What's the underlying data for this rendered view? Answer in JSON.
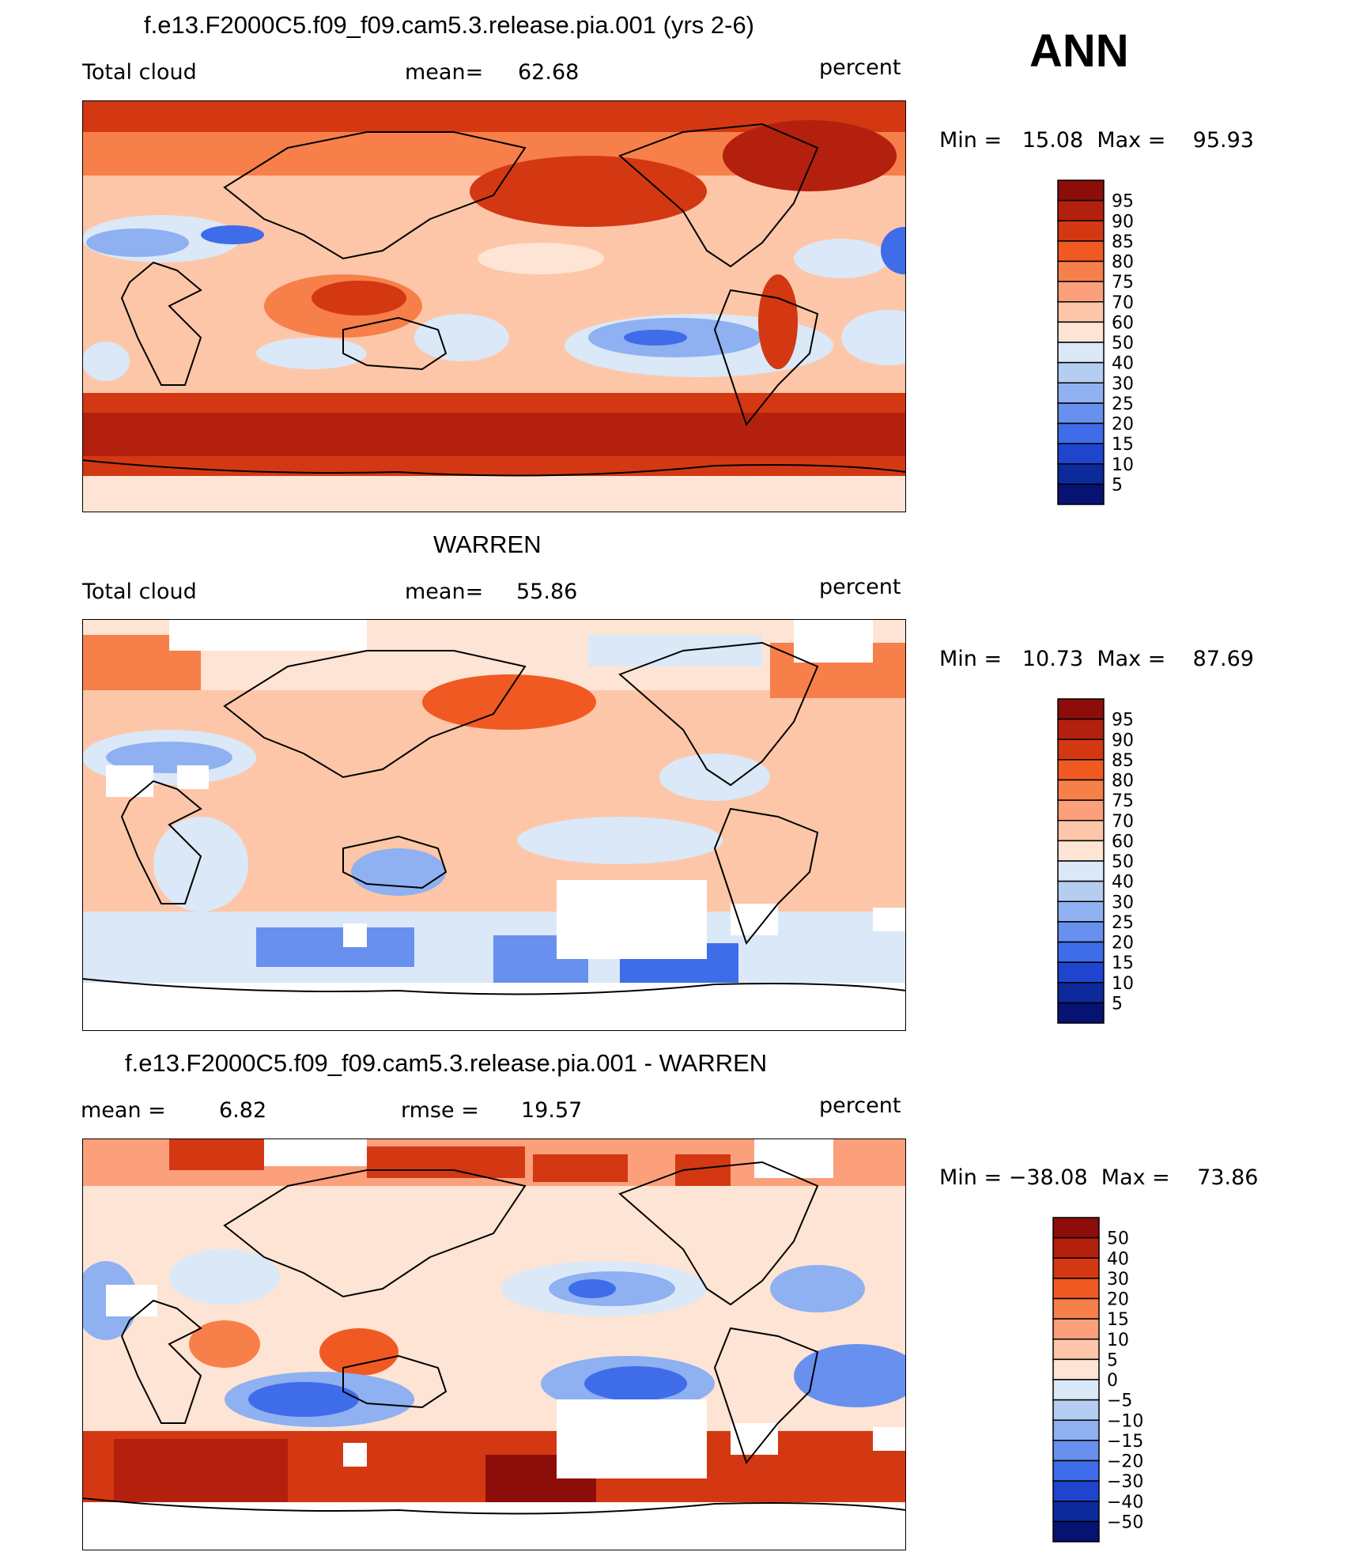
{
  "season": "ANN",
  "panels": [
    {
      "title": "f.e13.F2000C5.f09_f09.cam5.3.release.pia.001 (yrs 2-6)",
      "left_label": "Total cloud",
      "mean_label": "mean=",
      "mean_value": "62.68",
      "units": "percent",
      "minmax": "Min =   15.08  Max =    95.93"
    },
    {
      "title": "WARREN",
      "left_label": "Total cloud",
      "mean_label": "mean=",
      "mean_value": "55.86",
      "units": "percent",
      "minmax": "Min =   10.73  Max =    87.69"
    },
    {
      "title": "f.e13.F2000C5.f09_f09.cam5.3.release.pia.001 - WARREN",
      "left_label": "mean =",
      "mean_value": "6.82",
      "rmse_label": "rmse =",
      "rmse_value": "19.57",
      "units": "percent",
      "minmax": "Min = −38.08  Max =    73.86"
    }
  ],
  "colorbars": {
    "abs_labels": [
      "95",
      "90",
      "85",
      "80",
      "75",
      "70",
      "60",
      "50",
      "40",
      "30",
      "25",
      "20",
      "15",
      "10",
      "5"
    ],
    "abs_colors": [
      "#8c0d0a",
      "#b3200d",
      "#d33812",
      "#f05a22",
      "#f77f4a",
      "#fba07a",
      "#fdc6a8",
      "#fde4d4",
      "#dbe8f7",
      "#b6cdf2",
      "#8fb0f1",
      "#6890ee",
      "#3f6ce8",
      "#1f45cf",
      "#0d2a9c",
      "#061373"
    ],
    "diff_labels": [
      "50",
      "40",
      "30",
      "20",
      "15",
      "10",
      "5",
      "0",
      "−5",
      "−10",
      "−15",
      "−20",
      "−30",
      "−40",
      "−50"
    ],
    "diff_colors": [
      "#8c0d0a",
      "#b3200d",
      "#d33812",
      "#f05a22",
      "#f77f4a",
      "#fba07a",
      "#fdc6a8",
      "#fde4d4",
      "#dbe8f7",
      "#b6cdf2",
      "#8fb0f1",
      "#6890ee",
      "#3f6ce8",
      "#1f45cf",
      "#0d2a9c",
      "#061373"
    ]
  },
  "map_colors": {
    "high": "#d33812",
    "mid_high": "#f77f4a",
    "mid": "#fba07a",
    "light": "#fdc6a8",
    "pale": "#fde4d4",
    "pale_blue": "#dbe8f7",
    "blue": "#8fb0f1",
    "deep_blue": "#3f6ce8",
    "missing": "#ffffff",
    "coast": "#000000"
  }
}
